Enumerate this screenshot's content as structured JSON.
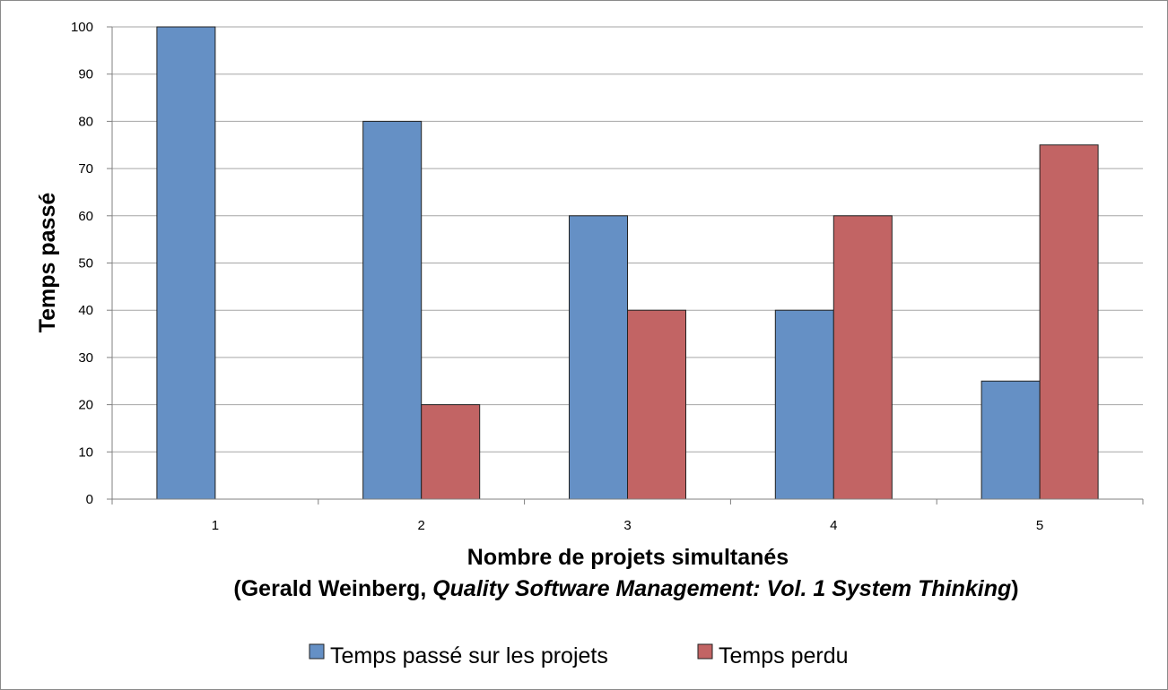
{
  "chart_data": {
    "type": "bar",
    "categories": [
      "1",
      "2",
      "3",
      "4",
      "5"
    ],
    "series": [
      {
        "name": "Temps passé sur les projets",
        "values": [
          100,
          80,
          60,
          40,
          25
        ],
        "color": "#6590c5"
      },
      {
        "name": "Temps perdu",
        "values": [
          0,
          20,
          40,
          60,
          75
        ],
        "color": "#c26464"
      }
    ],
    "ylabel": "Temps passé",
    "xlabel": {
      "line1": "Nombre de projets simultanés",
      "line2_prefix": "(Gerald Weinberg, ",
      "line2_italic": "Quality Software Management: Vol. 1 System Thinking",
      "line2_suffix": ")"
    },
    "ylim": [
      0,
      100
    ],
    "yticks": [
      0,
      10,
      20,
      30,
      40,
      50,
      60,
      70,
      80,
      90,
      100
    ],
    "grid": true,
    "legend_position": "bottom",
    "colors": {
      "gridline": "#a6a6a6",
      "axis": "#808080",
      "bar_border": "#222222"
    }
  }
}
